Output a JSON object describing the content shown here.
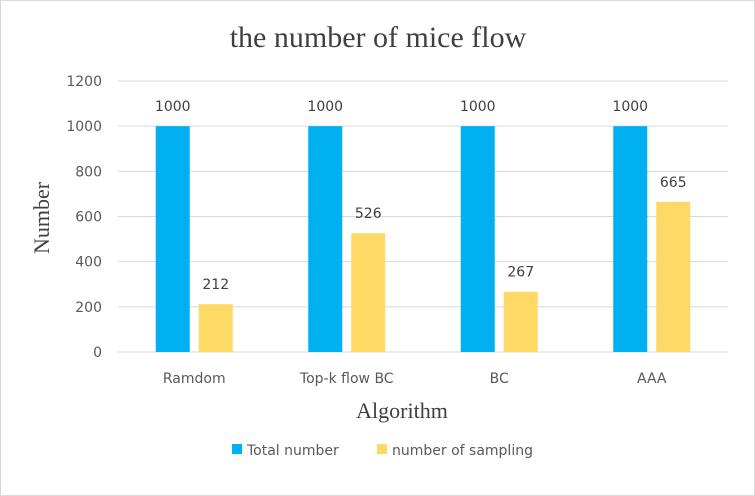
{
  "chart_data": {
    "type": "bar",
    "title": "the number of mice flow",
    "xlabel": "Algorithm",
    "ylabel": "Number",
    "categories": [
      "Ramdom",
      "Top-k flow BC",
      "BC",
      "AAA"
    ],
    "series": [
      {
        "name": "Total number",
        "values": [
          1000,
          1000,
          1000,
          1000
        ],
        "color": "#00b0f0"
      },
      {
        "name": "number of sampling",
        "values": [
          212,
          526,
          267,
          665
        ],
        "color": "#ffd966"
      }
    ],
    "ylim": [
      0,
      1200
    ],
    "yticks": [
      0,
      200,
      400,
      600,
      800,
      1000,
      1200
    ],
    "grid": true,
    "legend_position": "bottom",
    "data_labels": true
  }
}
